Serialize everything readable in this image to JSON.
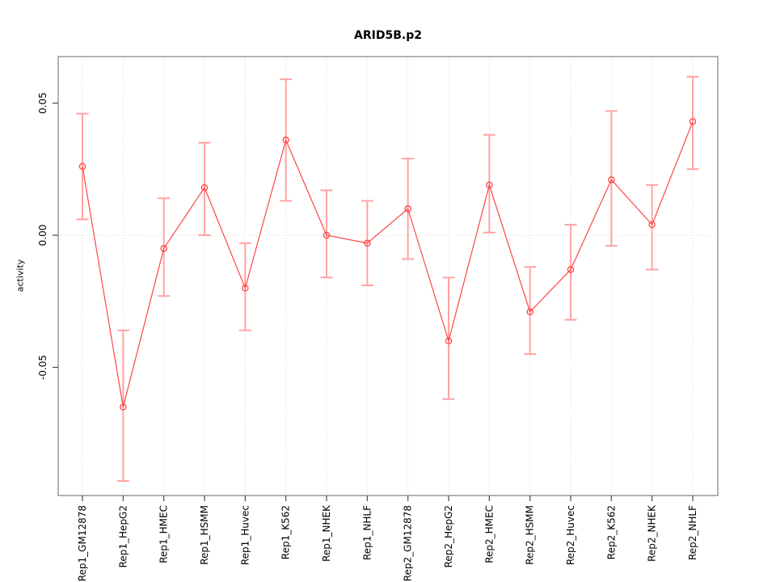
{
  "chart_data": {
    "type": "line",
    "title": "ARID5B.p2",
    "xlabel": "",
    "ylabel": "activity",
    "categories": [
      "Rep1_GM12878",
      "Rep1_HepG2",
      "Rep1_HMEC",
      "Rep1_HSMM",
      "Rep1_Huvec",
      "Rep1_K562",
      "Rep1_NHEK",
      "Rep1_NHLF",
      "Rep2_GM12878",
      "Rep2_HepG2",
      "Rep2_HMEC",
      "Rep2_HSMM",
      "Rep2_Huvec",
      "Rep2_K562",
      "Rep2_NHEK",
      "Rep2_NHLF"
    ],
    "series": [
      {
        "name": "activity",
        "values": [
          0.026,
          -0.065,
          -0.005,
          0.018,
          -0.02,
          0.036,
          0.0,
          -0.003,
          0.01,
          -0.04,
          0.019,
          -0.029,
          -0.013,
          0.021,
          0.004,
          0.043
        ],
        "error_upper": [
          0.046,
          -0.036,
          0.014,
          0.035,
          -0.003,
          0.059,
          0.017,
          0.013,
          0.029,
          -0.016,
          0.038,
          -0.012,
          0.004,
          0.047,
          0.019,
          0.06
        ],
        "error_lower": [
          0.006,
          -0.093,
          -0.023,
          0.0,
          -0.036,
          0.013,
          -0.016,
          -0.019,
          -0.009,
          -0.062,
          0.001,
          -0.045,
          -0.032,
          -0.004,
          -0.013,
          0.025
        ]
      }
    ],
    "yticks": [
      0.05,
      0.0,
      -0.05
    ],
    "ytick_labels": [
      "0.05",
      "0.00",
      "-0.05"
    ],
    "ylim": [
      -0.0985,
      0.0676
    ],
    "marker": "open-circle",
    "legend": "none",
    "grid": {
      "vertical": "dotted line at each category",
      "horizontal": "dotted line at y = 0"
    },
    "colors": {
      "series": "#ff4545",
      "error_bars": "#ffa3a3",
      "grid": "#d8d8d8",
      "box": "#8a8a8a",
      "ticks": "#4a4a4a",
      "text": "#000000",
      "background": "#ffffff"
    }
  }
}
